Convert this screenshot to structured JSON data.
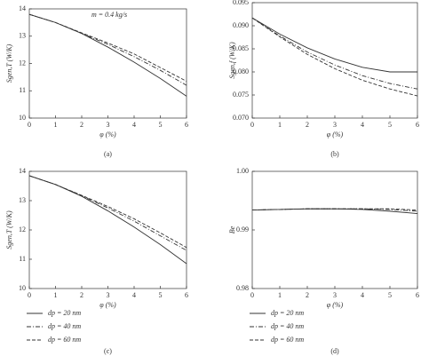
{
  "chart_data": [
    {
      "type": "line",
      "panel": "(a)",
      "xlabel": "φ (%)",
      "ylabel": "Sgen,T (W/K)",
      "annotation": "m = 0.4 kg/s",
      "x": [
        0,
        1,
        2,
        3,
        4,
        5,
        6
      ],
      "xlim": [
        0,
        6
      ],
      "xticks": [
        0,
        1,
        2,
        3,
        4,
        5,
        6
      ],
      "ylim": [
        10,
        14
      ],
      "yticks": [
        10,
        11,
        12,
        13,
        14
      ],
      "legend": false,
      "series": [
        {
          "color": "#333333",
          "dash": "solid",
          "values": [
            13.8,
            13.5,
            13.1,
            12.6,
            12.05,
            11.45,
            10.8
          ]
        },
        {
          "color": "#333333",
          "dash": "dashdot",
          "values": [
            13.8,
            13.5,
            13.1,
            12.7,
            12.25,
            11.75,
            11.2
          ]
        },
        {
          "color": "#333333",
          "dash": "dashed",
          "values": [
            13.8,
            13.5,
            13.12,
            12.75,
            12.35,
            11.85,
            11.35
          ]
        }
      ]
    },
    {
      "type": "line",
      "panel": "(b)",
      "xlabel": "φ (%)",
      "ylabel": "Sgen,f (W/K)",
      "x": [
        0,
        1,
        2,
        3,
        4,
        5,
        6
      ],
      "xlim": [
        0,
        6
      ],
      "xticks": [
        0,
        1,
        2,
        3,
        4,
        5,
        6
      ],
      "ylim": [
        0.07,
        0.095
      ],
      "yticks": [
        {
          "value": 0.07,
          "label": "0.070"
        },
        0.075,
        {
          "value": 0.08,
          "label": "0.080"
        },
        0.085,
        {
          "value": 0.09,
          "label": "0.090"
        },
        0.095
      ],
      "legend": false,
      "series": [
        {
          "color": "#333333",
          "dash": "solid",
          "values": [
            0.0917,
            0.0882,
            0.0852,
            0.0828,
            0.081,
            0.08,
            0.08
          ]
        },
        {
          "color": "#333333",
          "dash": "dashdot",
          "values": [
            0.0917,
            0.0878,
            0.0843,
            0.0815,
            0.0792,
            0.0775,
            0.0763
          ]
        },
        {
          "color": "#333333",
          "dash": "dashed",
          "values": [
            0.0917,
            0.0876,
            0.0838,
            0.0807,
            0.0782,
            0.0763,
            0.0748
          ]
        }
      ]
    },
    {
      "type": "line",
      "panel": "(c)",
      "xlabel": "φ (%)",
      "ylabel": "Sgen,T (W/K)",
      "x": [
        0,
        1,
        2,
        3,
        4,
        5,
        6
      ],
      "xlim": [
        0,
        6
      ],
      "xticks": [
        0,
        1,
        2,
        3,
        4,
        5,
        6
      ],
      "ylim": [
        10,
        14
      ],
      "yticks": [
        10,
        11,
        12,
        13,
        14
      ],
      "legend": true,
      "series": [
        {
          "name": "dp = 20 nm",
          "color": "#333333",
          "dash": "solid",
          "values": [
            13.85,
            13.55,
            13.15,
            12.65,
            12.1,
            11.5,
            10.85
          ]
        },
        {
          "name": "dp = 40 nm",
          "color": "#333333",
          "dash": "dashdot",
          "values": [
            13.85,
            13.55,
            13.17,
            12.75,
            12.3,
            11.8,
            11.3
          ]
        },
        {
          "name": "dp = 60 nm",
          "color": "#333333",
          "dash": "dashed",
          "values": [
            13.85,
            13.55,
            13.18,
            12.8,
            12.38,
            11.9,
            11.4
          ]
        }
      ]
    },
    {
      "type": "line",
      "panel": "(d)",
      "xlabel": "φ (%)",
      "ylabel": "Be",
      "x": [
        0,
        1,
        2,
        3,
        4,
        5,
        6
      ],
      "xlim": [
        0,
        6
      ],
      "xticks": [
        0,
        1,
        2,
        3,
        4,
        5,
        6
      ],
      "ylim": [
        0.98,
        1.0
      ],
      "yticks": [
        0.98,
        0.99,
        {
          "value": 1.0,
          "label": "1.00"
        }
      ],
      "legend": true,
      "series": [
        {
          "name": "dp = 20 nm",
          "color": "#333333",
          "dash": "solid",
          "values": [
            0.9934,
            0.9935,
            0.9936,
            0.9936,
            0.9935,
            0.9932,
            0.9928
          ]
        },
        {
          "name": "dp = 40 nm",
          "color": "#333333",
          "dash": "dashdot",
          "values": [
            0.9934,
            0.9935,
            0.9936,
            0.9936,
            0.9936,
            0.9935,
            0.9932
          ]
        },
        {
          "name": "dp = 60 nm",
          "color": "#333333",
          "dash": "dashed",
          "values": [
            0.9934,
            0.9935,
            0.9936,
            0.9936,
            0.9936,
            0.9936,
            0.9934
          ]
        }
      ]
    }
  ]
}
